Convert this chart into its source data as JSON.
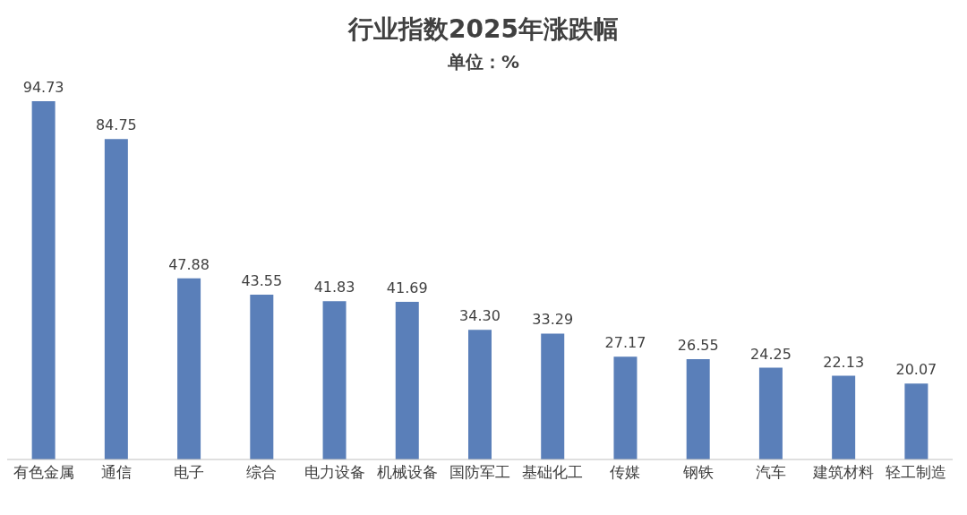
{
  "chart_data": {
    "type": "bar",
    "title": "行业指数2025年涨跌幅",
    "subtitle": "单位：%",
    "categories": [
      "有色金属",
      "通信",
      "电子",
      "综合",
      "电力设备",
      "机械设备",
      "国防军工",
      "基础化工",
      "传媒",
      "钢铁",
      "汽车",
      "建筑材料",
      "轻工制造"
    ],
    "values": [
      94.73,
      84.75,
      47.88,
      43.55,
      41.83,
      41.69,
      34.3,
      33.29,
      27.17,
      26.55,
      24.25,
      22.13,
      20.07
    ],
    "value_labels": [
      "94.73",
      "84.75",
      "47.88",
      "43.55",
      "41.83",
      "41.69",
      "34.30",
      "33.29",
      "27.17",
      "26.55",
      "24.25",
      "22.13",
      "20.07"
    ],
    "color": "#5a7fb9",
    "tick_labels": "x"
  }
}
